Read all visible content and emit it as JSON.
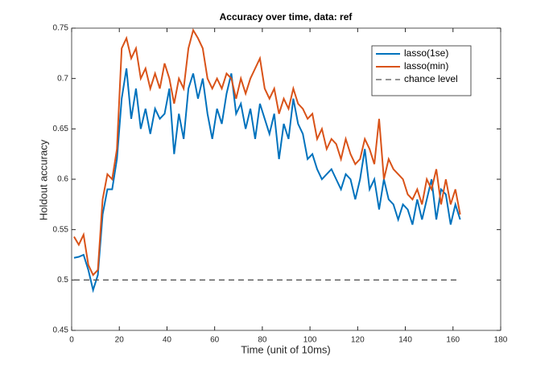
{
  "chart_data": {
    "type": "line",
    "title": "Accuracy over time, data: ref",
    "x_label": "Time (unit of 10ms)",
    "y_label": "Holdout accuracy",
    "xlim": [
      0,
      180
    ],
    "xticks": [
      0,
      20,
      40,
      60,
      80,
      100,
      120,
      140,
      160,
      180
    ],
    "ylim": [
      0.45,
      0.75
    ],
    "yticks": [
      0.45,
      0.5,
      0.55,
      0.6,
      0.65,
      0.7,
      0.75
    ],
    "legend": "upper-right",
    "x": [
      1,
      3,
      5,
      7,
      9,
      11,
      13,
      15,
      17,
      19,
      21,
      23,
      25,
      27,
      29,
      31,
      33,
      35,
      37,
      39,
      41,
      43,
      45,
      47,
      49,
      51,
      53,
      55,
      57,
      59,
      61,
      63,
      65,
      67,
      69,
      71,
      73,
      75,
      77,
      79,
      81,
      83,
      85,
      87,
      89,
      91,
      93,
      95,
      97,
      99,
      101,
      103,
      105,
      107,
      109,
      111,
      113,
      115,
      117,
      119,
      121,
      123,
      125,
      127,
      129,
      131,
      133,
      135,
      137,
      139,
      141,
      143,
      145,
      147,
      149,
      151,
      153,
      155,
      157,
      159,
      161,
      163
    ],
    "series": [
      {
        "name": "lasso(1se)",
        "color": "#0072bd",
        "values": [
          0.522,
          0.523,
          0.525,
          0.51,
          0.49,
          0.505,
          0.565,
          0.59,
          0.59,
          0.62,
          0.68,
          0.71,
          0.66,
          0.69,
          0.65,
          0.67,
          0.645,
          0.67,
          0.66,
          0.665,
          0.69,
          0.625,
          0.665,
          0.64,
          0.69,
          0.705,
          0.68,
          0.7,
          0.665,
          0.64,
          0.67,
          0.655,
          0.685,
          0.705,
          0.665,
          0.675,
          0.65,
          0.67,
          0.64,
          0.675,
          0.66,
          0.645,
          0.665,
          0.62,
          0.655,
          0.64,
          0.68,
          0.655,
          0.645,
          0.62,
          0.625,
          0.61,
          0.6,
          0.605,
          0.61,
          0.6,
          0.59,
          0.605,
          0.6,
          0.58,
          0.6,
          0.63,
          0.59,
          0.6,
          0.57,
          0.6,
          0.58,
          0.575,
          0.56,
          0.575,
          0.57,
          0.555,
          0.58,
          0.56,
          0.58,
          0.6,
          0.56,
          0.59,
          0.585,
          0.555,
          0.575,
          0.56
        ]
      },
      {
        "name": "lasso(min)",
        "color": "#d95319",
        "values": [
          0.543,
          0.535,
          0.545,
          0.515,
          0.505,
          0.51,
          0.58,
          0.605,
          0.6,
          0.63,
          0.73,
          0.74,
          0.72,
          0.73,
          0.7,
          0.71,
          0.69,
          0.705,
          0.69,
          0.715,
          0.7,
          0.675,
          0.7,
          0.69,
          0.73,
          0.748,
          0.74,
          0.73,
          0.7,
          0.69,
          0.7,
          0.69,
          0.705,
          0.7,
          0.68,
          0.7,
          0.685,
          0.7,
          0.71,
          0.72,
          0.69,
          0.68,
          0.69,
          0.665,
          0.68,
          0.67,
          0.69,
          0.675,
          0.67,
          0.66,
          0.665,
          0.64,
          0.65,
          0.63,
          0.64,
          0.635,
          0.62,
          0.64,
          0.625,
          0.615,
          0.62,
          0.64,
          0.63,
          0.615,
          0.66,
          0.6,
          0.62,
          0.61,
          0.605,
          0.6,
          0.585,
          0.58,
          0.59,
          0.575,
          0.6,
          0.59,
          0.61,
          0.575,
          0.6,
          0.575,
          0.59,
          0.565
        ]
      },
      {
        "name": "chance level",
        "color": "#555555",
        "dashed": true,
        "x": [
          1,
          163
        ],
        "values": [
          0.5,
          0.5
        ]
      }
    ]
  }
}
